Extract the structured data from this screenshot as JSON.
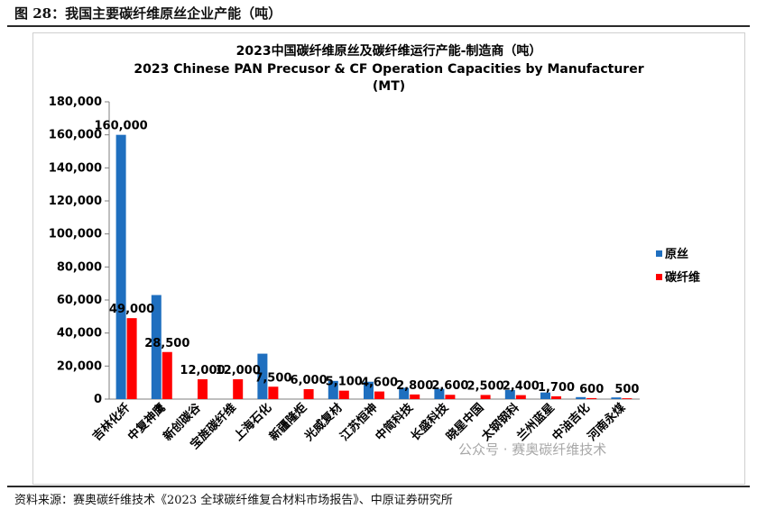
{
  "figure": {
    "title": "图 28：我国主要碳纤维原丝企业产能（吨）",
    "source": "资料来源：赛奥碳纤维技术《2023 全球碳纤维复合材料市场报告》、中原证券研究所",
    "watermark": "公众号 · 赛奥碳纤维技术"
  },
  "chart_data": {
    "type": "bar",
    "title_cn": "2023中国碳纤维原丝及碳纤维运行产能-制造商（吨）",
    "title_en_line1": "2023 Chinese PAN Precusor & CF Operation Capacities by Manufacturer",
    "title_en_line2": "(MT)",
    "xlabel": "",
    "ylabel": "",
    "ylim": [
      0,
      180000
    ],
    "yticks": [
      0,
      20000,
      40000,
      60000,
      80000,
      100000,
      120000,
      140000,
      160000,
      180000
    ],
    "ytick_labels": [
      "0",
      "20,000",
      "40,000",
      "60,000",
      "80,000",
      "100,000",
      "120,000",
      "140,000",
      "160,000",
      "180,000"
    ],
    "grid": false,
    "legend_position": "right",
    "categories": [
      "吉林化纤",
      "中复神鹰",
      "新创碳谷",
      "宝旌碳纤维",
      "上海石化",
      "新疆隆炬",
      "光威复材",
      "江苏恒神",
      "中简科技",
      "长盛科技",
      "晓星中国",
      "太钢钢科",
      "兰州蓝星",
      "中油吉化",
      "河南永煤"
    ],
    "series": [
      {
        "name": "原丝",
        "color": "#1f6fbf",
        "values": [
          160000,
          63000,
          0,
          0,
          27500,
          0,
          11000,
          10500,
          6800,
          6200,
          0,
          5500,
          4000,
          1200,
          1000
        ]
      },
      {
        "name": "碳纤维",
        "color": "#ff0000",
        "values": [
          49000,
          28500,
          12000,
          12000,
          7500,
          6000,
          5100,
          4600,
          2800,
          2600,
          2500,
          2400,
          1700,
          600,
          500
        ]
      }
    ],
    "data_labels": [
      "160,000",
      "49,000",
      "28,500",
      "12,000",
      "12,000",
      "7,500",
      "6,000",
      "5,100",
      "4,600",
      "2,800",
      "2,600",
      "2,500",
      "2,400",
      "1,700",
      "600",
      "500"
    ]
  }
}
